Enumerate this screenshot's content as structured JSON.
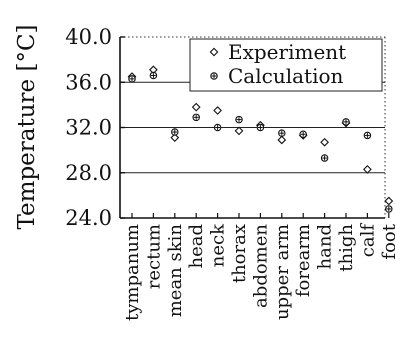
{
  "chart_data": {
    "type": "scatter",
    "ylabel": "Temperature [°C]",
    "ylim": [
      24.0,
      40.0
    ],
    "yticks": [
      "24.0",
      "28.0",
      "32.0",
      "36.0",
      "40.0"
    ],
    "ytick_values": [
      24.0,
      28.0,
      32.0,
      36.0,
      40.0
    ],
    "gridlines": [
      28.0,
      32.0,
      36.0
    ],
    "legend_position": "top-right",
    "categories": [
      "tympanum",
      "rectum",
      "mean skin",
      "head",
      "neck",
      "thorax",
      "abdomen",
      "upper arm",
      "forearm",
      "hand",
      "thigh",
      "calf",
      "foot"
    ],
    "series": [
      {
        "name": "Experiment",
        "marker": "diamond",
        "values": [
          36.5,
          37.1,
          31.1,
          33.8,
          33.5,
          31.7,
          32.2,
          30.9,
          31.3,
          30.7,
          32.4,
          28.3,
          25.5
        ]
      },
      {
        "name": "Calculation",
        "marker": "circle",
        "values": [
          36.3,
          36.6,
          31.6,
          32.9,
          32.0,
          32.7,
          32.0,
          31.5,
          31.4,
          29.3,
          32.5,
          31.3,
          24.8
        ]
      }
    ]
  }
}
